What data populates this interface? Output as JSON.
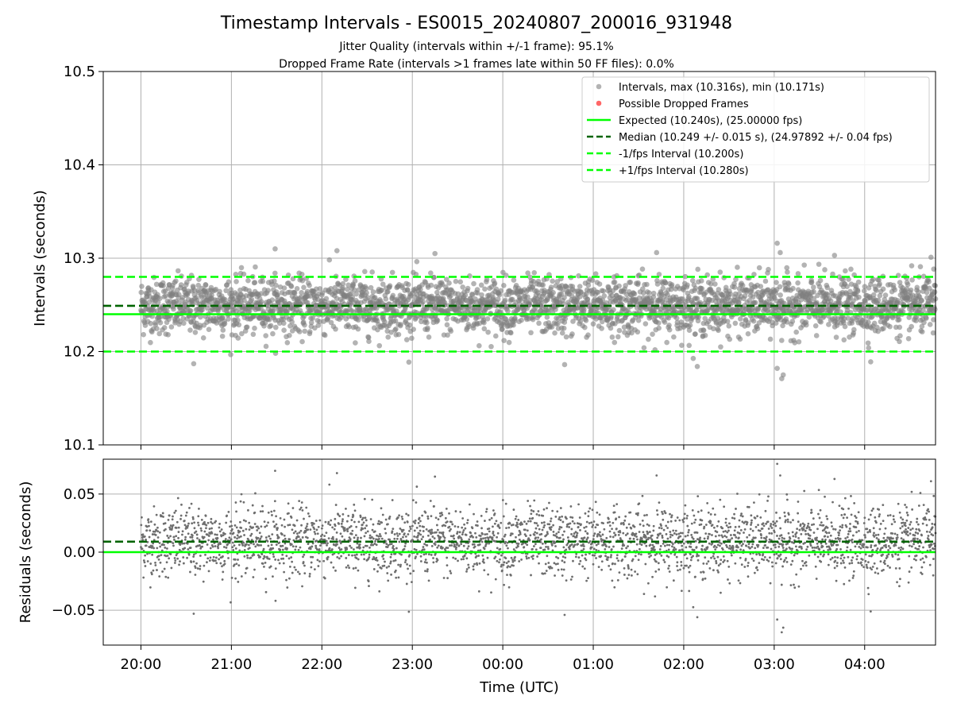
{
  "figure": {
    "title": "Timestamp Intervals - ES0015_20240807_200016_931948",
    "subtitle_1": "Jitter Quality (intervals within +/-1 frame): 95.1%",
    "subtitle_2": "Dropped Frame Rate (intervals >1 frames late within 50 FF files): 0.0%",
    "colors": {
      "points": "#808080",
      "dropped": "#ff0000",
      "expected": "#00ff00",
      "median": "#006400",
      "grid": "#b0b0b0"
    }
  },
  "chart_data": [
    {
      "type": "scatter",
      "panel": "top",
      "title": "Timestamp Intervals - ES0015_20240807_200016_931948",
      "xlabel": "",
      "ylabel": "Intervals (seconds)",
      "xlim": [
        "19:35",
        "04:47"
      ],
      "ylim": [
        10.1,
        10.5
      ],
      "grid": true,
      "x_ticks": [
        "20:00",
        "21:00",
        "22:00",
        "23:00",
        "00:00",
        "01:00",
        "02:00",
        "03:00",
        "04:00"
      ],
      "y_ticks": [
        "10.1",
        "10.2",
        "10.3",
        "10.4",
        "10.5"
      ],
      "y_tick_values": [
        10.1,
        10.2,
        10.3,
        10.4,
        10.5
      ],
      "x_range_of_data": [
        "20:00",
        "04:47"
      ],
      "legend_position": "top-right",
      "series": [
        {
          "name": "Intervals, max (10.316s), min (10.171s)",
          "kind": "points",
          "max": 10.316,
          "min": 10.171,
          "center": 10.249,
          "spread": 0.015,
          "notable_points": [
            {
              "x": "21:29",
              "y": 10.31
            },
            {
              "x": "22:10",
              "y": 10.308
            },
            {
              "x": "23:15",
              "y": 10.305
            },
            {
              "x": "01:42",
              "y": 10.306
            },
            {
              "x": "03:02",
              "y": 10.316
            },
            {
              "x": "03:04",
              "y": 10.306
            },
            {
              "x": "03:40",
              "y": 10.303
            },
            {
              "x": "04:44",
              "y": 10.301
            },
            {
              "x": "03:02",
              "y": 10.182
            },
            {
              "x": "03:05",
              "y": 10.171
            },
            {
              "x": "03:06",
              "y": 10.175
            },
            {
              "x": "02:09",
              "y": 10.184
            },
            {
              "x": "20:35",
              "y": 10.187
            },
            {
              "x": "00:41",
              "y": 10.186
            },
            {
              "x": "04:04",
              "y": 10.189
            }
          ]
        },
        {
          "name": "Possible Dropped Frames",
          "kind": "points",
          "values": []
        },
        {
          "name": "Expected (10.240s), (25.00000 fps)",
          "kind": "hline",
          "y": 10.24,
          "style": "solid"
        },
        {
          "name": "Median (10.249 +/- 0.015 s), (24.97892 +/- 0.04 fps)",
          "kind": "hline",
          "y": 10.249,
          "style": "dashed"
        },
        {
          "name": "-1/fps Interval (10.200s)",
          "kind": "hline",
          "y": 10.2,
          "style": "dashed"
        },
        {
          "name": "+1/fps Interval (10.280s)",
          "kind": "hline",
          "y": 10.28,
          "style": "dashed"
        }
      ]
    },
    {
      "type": "scatter",
      "panel": "bottom",
      "xlabel": "Time (UTC)",
      "ylabel": "Residuals (seconds)",
      "xlim": [
        "19:35",
        "04:47"
      ],
      "ylim": [
        -0.08,
        0.08
      ],
      "grid": true,
      "x_ticks": [
        "20:00",
        "21:00",
        "22:00",
        "23:00",
        "00:00",
        "01:00",
        "02:00",
        "03:00",
        "04:00"
      ],
      "y_ticks": [
        "0.05",
        "0.00",
        "−0.05"
      ],
      "y_tick_values": [
        0.05,
        0.0,
        -0.05
      ],
      "series": [
        {
          "name": "",
          "kind": "points",
          "center": 0.009,
          "spread": 0.015,
          "max": 0.076,
          "min": -0.069
        },
        {
          "name": "",
          "kind": "hline",
          "y": 0.0,
          "style": "solid"
        },
        {
          "name": "",
          "kind": "hline",
          "y": 0.009,
          "style": "dashed"
        }
      ]
    }
  ]
}
